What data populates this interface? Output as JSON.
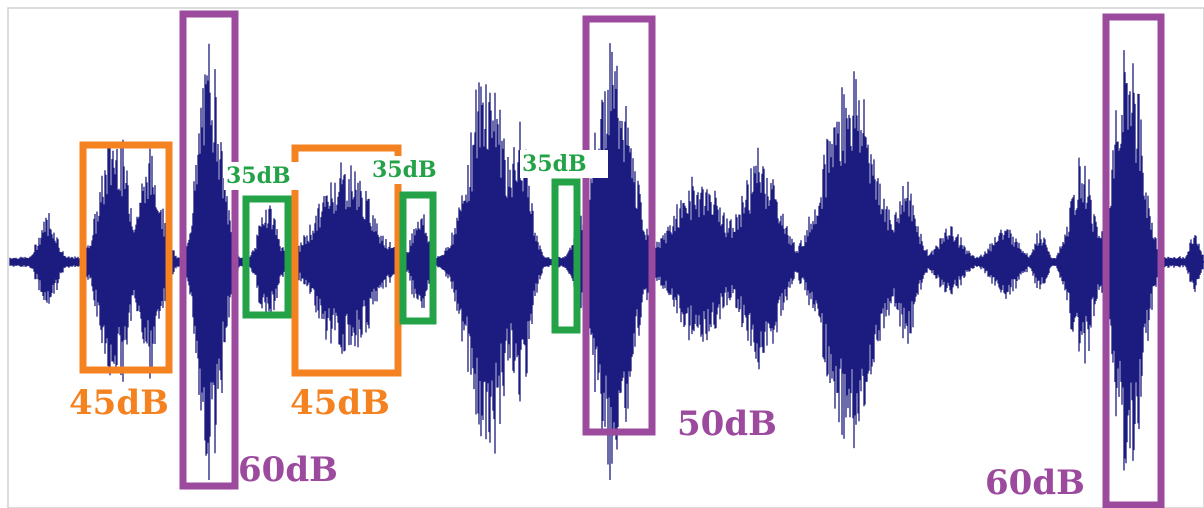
{
  "colors": {
    "waveform": "#1c1c80",
    "orange": "#f58220",
    "green": "#23a247",
    "purple": "#9b4a9e",
    "frame": "#d0d0d0"
  },
  "labels": {
    "db45": "45dB",
    "db35": "35dB",
    "db50": "50dB",
    "db60": "60dB"
  },
  "segments": [
    {
      "level": "45dB",
      "color": "orange"
    },
    {
      "level": "60dB",
      "color": "purple"
    },
    {
      "level": "35dB",
      "color": "green"
    },
    {
      "level": "45dB",
      "color": "orange"
    },
    {
      "level": "35dB",
      "color": "green"
    },
    {
      "level": "35dB",
      "color": "green"
    },
    {
      "level": "50dB",
      "color": "purple"
    },
    {
      "level": "60dB",
      "color": "purple"
    }
  ]
}
